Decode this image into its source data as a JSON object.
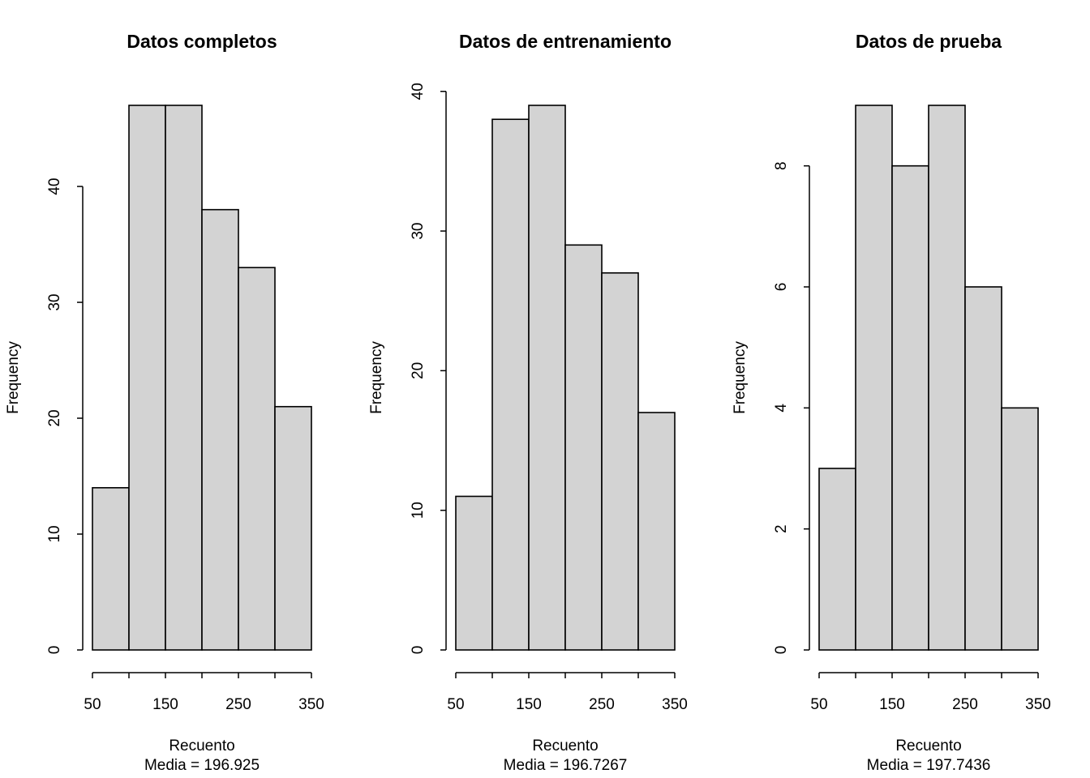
{
  "chart_data": [
    {
      "type": "histogram",
      "title": "Datos completos",
      "xlabel": "Recuento",
      "subtitle": "Media = 196.925",
      "ylabel": "Frequency",
      "bins": [
        50,
        100,
        150,
        200,
        250,
        300,
        350
      ],
      "values": [
        14,
        47,
        47,
        38,
        33,
        21
      ],
      "color": "#d3d3d3",
      "xlim": [
        50,
        350
      ],
      "xticks": [
        50,
        150,
        250,
        350
      ],
      "ylim": [
        0,
        47
      ],
      "yticks": [
        0,
        10,
        20,
        30,
        40
      ]
    },
    {
      "type": "histogram",
      "title": "Datos de entrenamiento",
      "xlabel": "Recuento",
      "subtitle": "Media = 196.7267",
      "ylabel": "Frequency",
      "bins": [
        50,
        100,
        150,
        200,
        250,
        300,
        350
      ],
      "values": [
        11,
        38,
        39,
        29,
        27,
        17
      ],
      "color": "#d3d3d3",
      "xlim": [
        50,
        350
      ],
      "xticks": [
        50,
        150,
        250,
        350
      ],
      "ylim": [
        0,
        39
      ],
      "yticks": [
        0,
        10,
        20,
        30,
        40
      ]
    },
    {
      "type": "histogram",
      "title": "Datos de prueba",
      "xlabel": "Recuento",
      "subtitle": "Media = 197.7436",
      "ylabel": "Frequency",
      "bins": [
        50,
        100,
        150,
        200,
        250,
        300,
        350
      ],
      "values": [
        3,
        9,
        8,
        9,
        6,
        4
      ],
      "color": "#d3d3d3",
      "xlim": [
        50,
        350
      ],
      "xticks": [
        50,
        150,
        250,
        350
      ],
      "ylim": [
        0,
        9
      ],
      "yticks": [
        0,
        2,
        4,
        6,
        8
      ]
    }
  ]
}
